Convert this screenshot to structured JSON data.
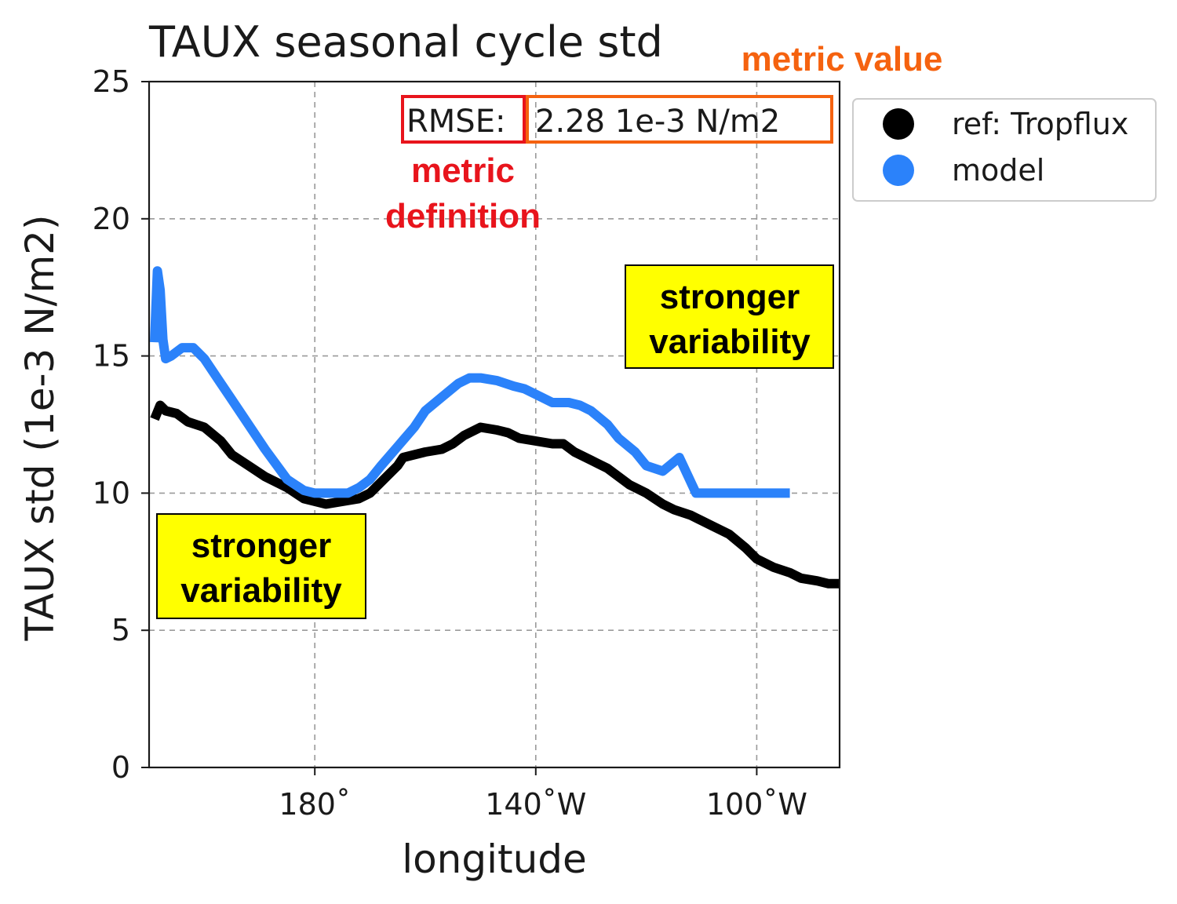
{
  "chart_data": {
    "type": "line",
    "title": "TAUX seasonal cycle std",
    "xlabel": "longitude",
    "ylabel": "TAUX std (1e-3 N/m2)",
    "xlim": [
      150,
      -85
    ],
    "ylim": [
      0,
      25
    ],
    "x_ticks": [
      {
        "value": 180,
        "label": "180˚"
      },
      {
        "value": -140,
        "label": "140˚W"
      },
      {
        "value": -100,
        "label": "100˚W"
      }
    ],
    "y_ticks": [
      0,
      5,
      10,
      15,
      20,
      25
    ],
    "grid": true,
    "legend_position": "outside right, top",
    "series": [
      {
        "name": "ref: Tropflux",
        "color": "#000000",
        "x": [
          151,
          152,
          153,
          155,
          157,
          160,
          163,
          165,
          168,
          171,
          175,
          178,
          180,
          182,
          185,
          188,
          190,
          193,
          195,
          196,
          198,
          200,
          203,
          205,
          207,
          210,
          213,
          215,
          217,
          220,
          223,
          225,
          227,
          230,
          233,
          235,
          237,
          240,
          243,
          245,
          248,
          250,
          252,
          255,
          258,
          260,
          263,
          266,
          268,
          271,
          273,
          275
        ],
        "y": [
          12.7,
          13.2,
          13.0,
          12.9,
          12.6,
          12.4,
          11.9,
          11.4,
          11.0,
          10.6,
          10.2,
          9.8,
          9.7,
          9.6,
          9.7,
          9.8,
          10.0,
          10.6,
          11.0,
          11.3,
          11.4,
          11.5,
          11.6,
          11.8,
          12.1,
          12.4,
          12.3,
          12.2,
          12.0,
          11.9,
          11.8,
          11.8,
          11.5,
          11.2,
          10.9,
          10.6,
          10.3,
          10.0,
          9.6,
          9.4,
          9.2,
          9.0,
          8.8,
          8.5,
          8.0,
          7.6,
          7.3,
          7.1,
          6.9,
          6.8,
          6.7,
          6.7
        ],
        "display_x": [
          151,
          152,
          153,
          155,
          157,
          160,
          163,
          165,
          168,
          171,
          175,
          178,
          180,
          182,
          185,
          188,
          190,
          193,
          195,
          196,
          198,
          200,
          203,
          205,
          207,
          210,
          213,
          215,
          217,
          220,
          223,
          225,
          227,
          230,
          233,
          235,
          237,
          240,
          243,
          245,
          248,
          250,
          252,
          255,
          258,
          260,
          263,
          266,
          268,
          271,
          273,
          275
        ]
      },
      {
        "name": "model",
        "color": "#2b82fa",
        "x": [
          151,
          151.5,
          152,
          152.5,
          153,
          154,
          156,
          158,
          160,
          163,
          165,
          168,
          171,
          175,
          178,
          180,
          183,
          186,
          188,
          190,
          192,
          195,
          198,
          200,
          203,
          206,
          208,
          210,
          213,
          216,
          218,
          221,
          223,
          226,
          228,
          230,
          233,
          235,
          238,
          240,
          243,
          246,
          249,
          251,
          253,
          256,
          258,
          260,
          262,
          263,
          264,
          265,
          266
        ],
        "y": [
          15.5,
          18.1,
          17.4,
          15.6,
          14.9,
          15.0,
          15.3,
          15.3,
          14.9,
          14.0,
          13.4,
          12.5,
          11.6,
          10.5,
          10.1,
          10.0,
          10.0,
          10.0,
          10.2,
          10.5,
          11.0,
          11.7,
          12.4,
          13.0,
          13.5,
          14.0,
          14.2,
          14.2,
          14.1,
          13.9,
          13.8,
          13.5,
          13.3,
          13.3,
          13.2,
          13.0,
          12.5,
          12.0,
          11.5,
          11.0,
          10.8,
          11.3,
          10.0,
          10.0,
          10.0,
          10.0,
          10.0,
          10.0,
          10.0,
          10.0,
          10.0,
          10.0,
          10.0
        ]
      }
    ],
    "metric": {
      "definition": "RMSE:",
      "value": "2.28 1e-3 N/m2"
    },
    "annotations": {
      "metric_definition": [
        "metric",
        "definition"
      ],
      "metric_value": "metric value",
      "box_upper": [
        "stronger",
        "variability"
      ],
      "box_lower": [
        "stronger",
        "variability"
      ]
    },
    "colors": {
      "metric_definition": "#e8141c",
      "metric_value": "#f5620f",
      "highlight_box": "#ffff00"
    }
  }
}
